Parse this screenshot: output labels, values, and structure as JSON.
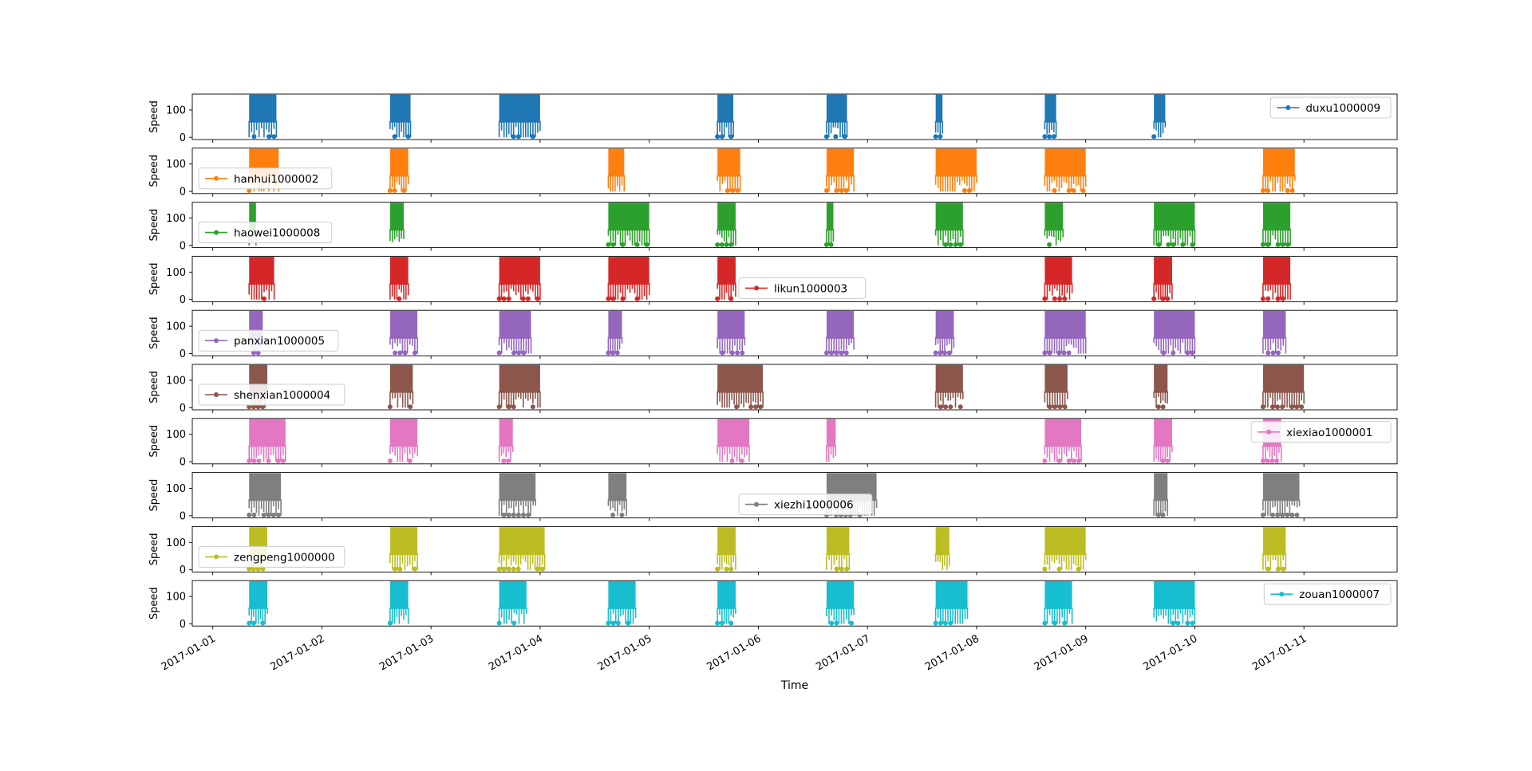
{
  "chart_data": {
    "type": "line",
    "xlabel": "Time",
    "ylabel": "Speed",
    "x_ticks": [
      "2017-01-01",
      "2017-01-02",
      "2017-01-03",
      "2017-01-04",
      "2017-01-05",
      "2017-01-06",
      "2017-01-07",
      "2017-01-08",
      "2017-01-09",
      "2017-01-10",
      "2017-01-11"
    ],
    "xlim": [
      "2016-12-31T19:30",
      "2017-01-11T20:30"
    ],
    "y_ticks": [
      0,
      100
    ],
    "ylim": [
      -8,
      158
    ],
    "speed_range": [
      0,
      150
    ],
    "grid": false,
    "series": [
      {
        "name": "duxu1000009",
        "color": "#1f77b4",
        "legend": "right",
        "active_periods": [
          [
            "2017-01-01T08:00",
            "2017-01-01T14:00"
          ],
          [
            "2017-01-02T15:00",
            "2017-01-02T19:30"
          ],
          [
            "2017-01-03T15:00",
            "2017-01-04T00:00"
          ],
          [
            "2017-01-05T15:00",
            "2017-01-05T18:30"
          ],
          [
            "2017-01-06T15:00",
            "2017-01-06T19:30"
          ],
          [
            "2017-01-07T15:00",
            "2017-01-07T16:30"
          ],
          [
            "2017-01-08T15:00",
            "2017-01-08T17:30"
          ],
          [
            "2017-01-09T15:00",
            "2017-01-09T17:30"
          ]
        ]
      },
      {
        "name": "hanhui1000002",
        "color": "#ff7f0e",
        "legend": "left",
        "active_periods": [
          [
            "2017-01-01T08:00",
            "2017-01-01T14:30"
          ],
          [
            "2017-01-02T15:00",
            "2017-01-02T19:00"
          ],
          [
            "2017-01-04T15:00",
            "2017-01-04T18:30"
          ],
          [
            "2017-01-05T15:00",
            "2017-01-05T20:00"
          ],
          [
            "2017-01-06T15:00",
            "2017-01-06T21:00"
          ],
          [
            "2017-01-07T15:00",
            "2017-01-08T00:00"
          ],
          [
            "2017-01-08T15:00",
            "2017-01-09T00:00"
          ],
          [
            "2017-01-10T15:00",
            "2017-01-10T22:00"
          ]
        ]
      },
      {
        "name": "haowei1000008",
        "color": "#2ca02c",
        "legend": "left",
        "active_periods": [
          [
            "2017-01-01T08:00",
            "2017-01-01T09:30"
          ],
          [
            "2017-01-02T15:00",
            "2017-01-02T18:00"
          ],
          [
            "2017-01-04T15:00",
            "2017-01-05T00:00"
          ],
          [
            "2017-01-05T15:00",
            "2017-01-05T19:00"
          ],
          [
            "2017-01-06T15:00",
            "2017-01-06T16:30"
          ],
          [
            "2017-01-07T15:00",
            "2017-01-07T21:00"
          ],
          [
            "2017-01-08T15:00",
            "2017-01-08T19:00"
          ],
          [
            "2017-01-09T15:00",
            "2017-01-10T00:00"
          ],
          [
            "2017-01-10T15:00",
            "2017-01-10T21:00"
          ]
        ]
      },
      {
        "name": "likun1000003",
        "color": "#d62728",
        "legend": "center",
        "active_periods": [
          [
            "2017-01-01T08:00",
            "2017-01-01T13:30"
          ],
          [
            "2017-01-02T15:00",
            "2017-01-02T19:00"
          ],
          [
            "2017-01-03T15:00",
            "2017-01-04T00:00"
          ],
          [
            "2017-01-04T15:00",
            "2017-01-05T00:00"
          ],
          [
            "2017-01-05T15:00",
            "2017-01-05T19:00"
          ],
          [
            "2017-01-08T15:00",
            "2017-01-08T21:00"
          ],
          [
            "2017-01-09T15:00",
            "2017-01-09T19:00"
          ],
          [
            "2017-01-10T15:00",
            "2017-01-10T21:00"
          ]
        ]
      },
      {
        "name": "panxian1000005",
        "color": "#9467bd",
        "legend": "left",
        "active_periods": [
          [
            "2017-01-01T08:00",
            "2017-01-01T11:00"
          ],
          [
            "2017-01-02T15:00",
            "2017-01-02T21:00"
          ],
          [
            "2017-01-03T15:00",
            "2017-01-03T22:00"
          ],
          [
            "2017-01-04T15:00",
            "2017-01-04T18:00"
          ],
          [
            "2017-01-05T15:00",
            "2017-01-05T21:00"
          ],
          [
            "2017-01-06T15:00",
            "2017-01-06T21:00"
          ],
          [
            "2017-01-07T15:00",
            "2017-01-07T19:00"
          ],
          [
            "2017-01-08T15:00",
            "2017-01-09T00:00"
          ],
          [
            "2017-01-09T15:00",
            "2017-01-10T00:00"
          ],
          [
            "2017-01-10T15:00",
            "2017-01-10T20:00"
          ]
        ]
      },
      {
        "name": "shenxian1000004",
        "color": "#8c564b",
        "legend": "left",
        "active_periods": [
          [
            "2017-01-01T08:00",
            "2017-01-01T12:00"
          ],
          [
            "2017-01-02T15:00",
            "2017-01-02T20:00"
          ],
          [
            "2017-01-03T15:00",
            "2017-01-04T00:00"
          ],
          [
            "2017-01-05T15:00",
            "2017-01-06T01:00"
          ],
          [
            "2017-01-07T15:00",
            "2017-01-07T21:00"
          ],
          [
            "2017-01-08T15:00",
            "2017-01-08T20:00"
          ],
          [
            "2017-01-09T15:00",
            "2017-01-09T18:00"
          ],
          [
            "2017-01-10T15:00",
            "2017-01-11T00:00"
          ]
        ]
      },
      {
        "name": "xiexiao1000001",
        "color": "#e377c2",
        "legend": "right",
        "active_periods": [
          [
            "2017-01-01T08:00",
            "2017-01-01T16:00"
          ],
          [
            "2017-01-02T15:00",
            "2017-01-02T21:00"
          ],
          [
            "2017-01-03T15:00",
            "2017-01-03T18:00"
          ],
          [
            "2017-01-05T15:00",
            "2017-01-05T22:00"
          ],
          [
            "2017-01-06T15:00",
            "2017-01-06T17:00"
          ],
          [
            "2017-01-08T15:00",
            "2017-01-08T23:00"
          ],
          [
            "2017-01-09T15:00",
            "2017-01-09T19:00"
          ],
          [
            "2017-01-10T15:00",
            "2017-01-10T19:00"
          ]
        ]
      },
      {
        "name": "xiezhi1000006",
        "color": "#7f7f7f",
        "legend": "center",
        "active_periods": [
          [
            "2017-01-01T08:00",
            "2017-01-01T15:00"
          ],
          [
            "2017-01-03T15:00",
            "2017-01-03T23:00"
          ],
          [
            "2017-01-04T15:00",
            "2017-01-04T19:00"
          ],
          [
            "2017-01-06T15:00",
            "2017-01-07T02:00"
          ],
          [
            "2017-01-09T15:00",
            "2017-01-09T18:00"
          ],
          [
            "2017-01-10T15:00",
            "2017-01-10T23:00"
          ]
        ]
      },
      {
        "name": "zengpeng1000000",
        "color": "#bcbd22",
        "legend": "left",
        "active_periods": [
          [
            "2017-01-01T08:00",
            "2017-01-01T12:00"
          ],
          [
            "2017-01-02T15:00",
            "2017-01-02T21:00"
          ],
          [
            "2017-01-03T15:00",
            "2017-01-04T01:00"
          ],
          [
            "2017-01-05T15:00",
            "2017-01-05T19:00"
          ],
          [
            "2017-01-06T15:00",
            "2017-01-06T20:00"
          ],
          [
            "2017-01-07T15:00",
            "2017-01-07T18:00"
          ],
          [
            "2017-01-08T15:00",
            "2017-01-09T00:00"
          ],
          [
            "2017-01-10T15:00",
            "2017-01-10T20:00"
          ]
        ]
      },
      {
        "name": "zouan1000007",
        "color": "#17becf",
        "legend": "right",
        "active_periods": [
          [
            "2017-01-01T08:00",
            "2017-01-01T12:00"
          ],
          [
            "2017-01-02T15:00",
            "2017-01-02T19:00"
          ],
          [
            "2017-01-03T15:00",
            "2017-01-03T21:00"
          ],
          [
            "2017-01-04T15:00",
            "2017-01-04T21:00"
          ],
          [
            "2017-01-05T15:00",
            "2017-01-05T19:00"
          ],
          [
            "2017-01-06T15:00",
            "2017-01-06T21:00"
          ],
          [
            "2017-01-07T15:00",
            "2017-01-07T22:00"
          ],
          [
            "2017-01-08T15:00",
            "2017-01-08T21:00"
          ],
          [
            "2017-01-09T15:00",
            "2017-01-10T00:00"
          ]
        ]
      }
    ]
  }
}
